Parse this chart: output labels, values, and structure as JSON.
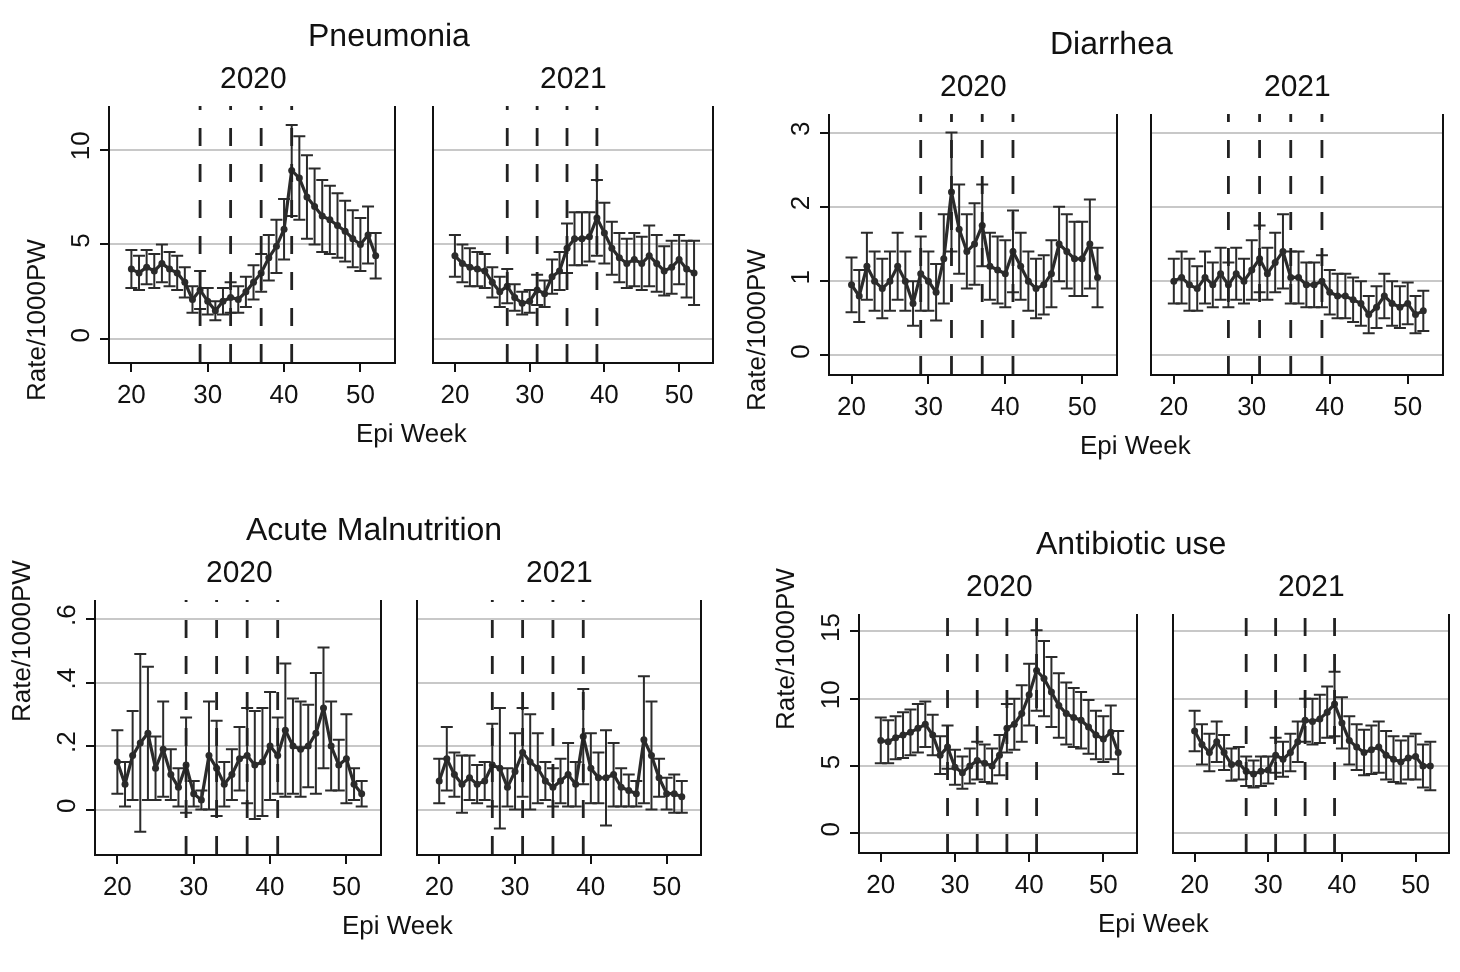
{
  "chart_data": [
    {
      "type": "line",
      "title": "Pneumonia",
      "subtitle": "2020",
      "xlabel": "Epi Week",
      "ylabel": "Rate/1000PW",
      "x": [
        20,
        21,
        22,
        23,
        24,
        25,
        26,
        27,
        28,
        29,
        30,
        31,
        32,
        33,
        34,
        35,
        36,
        37,
        38,
        39,
        40,
        41,
        42,
        43,
        44,
        45,
        46,
        47,
        48,
        49,
        50,
        51,
        52
      ],
      "xlim": [
        17.2,
        54.4
      ],
      "xticks": [
        20,
        30,
        40,
        50
      ],
      "ylim": [
        -1.2,
        12.3
      ],
      "yticks": [
        0,
        5,
        10
      ],
      "grid": "y",
      "marker": "circle",
      "line_style": "solid",
      "series": [
        {
          "color": "#2b2b2b",
          "values": [
            3.7,
            3.5,
            3.8,
            3.6,
            4.0,
            3.7,
            3.5,
            3.0,
            2.1,
            2.6,
            2.0,
            1.5,
            2.0,
            2.2,
            2.1,
            2.5,
            3.0,
            3.5,
            4.3,
            4.9,
            5.8,
            8.9,
            8.5,
            7.5,
            7.0,
            6.5,
            6.3,
            6.0,
            5.7,
            5.3,
            5.0,
            5.5,
            4.4
          ],
          "errors": [
            1.0,
            0.9,
            0.9,
            0.9,
            1.0,
            0.9,
            0.9,
            0.8,
            0.7,
            1.0,
            0.7,
            0.5,
            0.7,
            0.8,
            0.7,
            0.8,
            0.9,
            1.0,
            1.2,
            1.4,
            1.6,
            2.4,
            2.2,
            2.2,
            2.0,
            1.9,
            1.8,
            1.7,
            1.6,
            1.5,
            1.4,
            1.5,
            1.2
          ]
        }
      ],
      "ref_lines": [
        {
          "axis": "x",
          "value": 29,
          "color": "#222222",
          "line_style": "dashed"
        },
        {
          "axis": "x",
          "value": 33,
          "color": "#222222",
          "line_style": "dashed"
        },
        {
          "axis": "x",
          "value": 37,
          "color": "#222222",
          "line_style": "dashed"
        },
        {
          "axis": "x",
          "value": 41,
          "color": "#222222",
          "line_style": "dashed"
        }
      ]
    },
    {
      "type": "line",
      "subtitle": "2021",
      "x": [
        20,
        21,
        22,
        23,
        24,
        25,
        26,
        27,
        28,
        29,
        30,
        31,
        32,
        33,
        34,
        35,
        36,
        37,
        38,
        39,
        40,
        41,
        42,
        43,
        44,
        45,
        46,
        47,
        48,
        49,
        50,
        51,
        52
      ],
      "xlim": [
        17.2,
        54.4
      ],
      "xticks": [
        20,
        30,
        40,
        50
      ],
      "ylim": [
        -1.2,
        12.3
      ],
      "yticks": [
        0,
        5,
        10
      ],
      "grid": "y",
      "marker": "circle",
      "line_style": "solid",
      "tick_labels": "x",
      "series": [
        {
          "color": "#2b2b2b",
          "values": [
            4.4,
            4.0,
            3.8,
            3.7,
            3.6,
            3.0,
            2.5,
            2.8,
            2.2,
            1.9,
            2.0,
            2.6,
            2.4,
            3.3,
            3.6,
            4.8,
            5.3,
            5.3,
            5.4,
            6.4,
            5.6,
            4.8,
            4.3,
            4.0,
            4.2,
            4.0,
            4.4,
            4.0,
            3.6,
            3.8,
            4.2,
            3.7,
            3.5
          ],
          "errors": [
            1.1,
            1.0,
            1.0,
            0.9,
            0.9,
            0.8,
            0.8,
            0.9,
            0.7,
            0.6,
            0.6,
            0.8,
            0.7,
            0.9,
            1.0,
            1.3,
            1.4,
            1.4,
            1.3,
            2.0,
            1.6,
            1.4,
            1.3,
            1.3,
            1.4,
            1.4,
            1.6,
            1.5,
            1.3,
            1.4,
            1.3,
            1.5,
            1.7
          ]
        }
      ],
      "ref_lines": [
        {
          "axis": "x",
          "value": 27,
          "color": "#222222",
          "line_style": "dashed"
        },
        {
          "axis": "x",
          "value": 31,
          "color": "#222222",
          "line_style": "dashed"
        },
        {
          "axis": "x",
          "value": 35,
          "color": "#222222",
          "line_style": "dashed"
        },
        {
          "axis": "x",
          "value": 39,
          "color": "#222222",
          "line_style": "dashed"
        }
      ]
    },
    {
      "type": "line",
      "title": "Diarrhea",
      "subtitle": "2020",
      "xlabel": "Epi Week",
      "ylabel": "Rate/1000PW",
      "x": [
        20,
        21,
        22,
        23,
        24,
        25,
        26,
        27,
        28,
        29,
        30,
        31,
        32,
        33,
        34,
        35,
        36,
        37,
        38,
        39,
        40,
        41,
        42,
        43,
        44,
        45,
        46,
        47,
        48,
        49,
        50,
        51,
        52
      ],
      "xlim": [
        17.2,
        54.4
      ],
      "xticks": [
        20,
        30,
        40,
        50
      ],
      "ylim": [
        -0.25,
        3.25
      ],
      "yticks": [
        0,
        1,
        2,
        3
      ],
      "grid": "y",
      "marker": "circle",
      "line_style": "solid",
      "series": [
        {
          "color": "#2b2b2b",
          "values": [
            0.95,
            0.8,
            1.2,
            1.0,
            0.9,
            1.0,
            1.2,
            1.0,
            0.7,
            1.1,
            1.0,
            0.85,
            1.3,
            2.2,
            1.7,
            1.4,
            1.5,
            1.75,
            1.2,
            1.15,
            1.1,
            1.4,
            1.2,
            1.0,
            0.9,
            0.95,
            1.1,
            1.5,
            1.4,
            1.3,
            1.3,
            1.5,
            1.05
          ],
          "errors": [
            0.37,
            0.35,
            0.45,
            0.4,
            0.4,
            0.4,
            0.45,
            0.4,
            0.3,
            0.5,
            0.4,
            0.38,
            0.6,
            0.8,
            0.6,
            0.5,
            0.55,
            0.55,
            0.45,
            0.45,
            0.45,
            0.55,
            0.45,
            0.4,
            0.4,
            0.4,
            0.45,
            0.5,
            0.5,
            0.5,
            0.5,
            0.6,
            0.4
          ]
        }
      ],
      "ref_lines": [
        {
          "axis": "x",
          "value": 29,
          "color": "#222222",
          "line_style": "dashed"
        },
        {
          "axis": "x",
          "value": 33,
          "color": "#222222",
          "line_style": "dashed"
        },
        {
          "axis": "x",
          "value": 37,
          "color": "#222222",
          "line_style": "dashed"
        },
        {
          "axis": "x",
          "value": 41,
          "color": "#222222",
          "line_style": "dashed"
        }
      ]
    },
    {
      "type": "line",
      "subtitle": "2021",
      "x": [
        20,
        21,
        22,
        23,
        24,
        25,
        26,
        27,
        28,
        29,
        30,
        31,
        32,
        33,
        34,
        35,
        36,
        37,
        38,
        39,
        40,
        41,
        42,
        43,
        44,
        45,
        46,
        47,
        48,
        49,
        50,
        51,
        52
      ],
      "xlim": [
        17.2,
        54.4
      ],
      "xticks": [
        20,
        30,
        40,
        50
      ],
      "ylim": [
        -0.25,
        3.25
      ],
      "yticks": [
        0,
        1,
        2,
        3
      ],
      "grid": "y",
      "marker": "circle",
      "line_style": "solid",
      "tick_labels": "x",
      "series": [
        {
          "color": "#2b2b2b",
          "values": [
            1.0,
            1.05,
            0.95,
            0.9,
            1.05,
            0.95,
            1.1,
            0.95,
            1.1,
            1.0,
            1.15,
            1.3,
            1.1,
            1.25,
            1.4,
            1.05,
            1.05,
            0.95,
            0.95,
            1.0,
            0.85,
            0.8,
            0.8,
            0.75,
            0.7,
            0.55,
            0.65,
            0.8,
            0.7,
            0.65,
            0.7,
            0.55,
            0.6
          ],
          "errors": [
            0.3,
            0.35,
            0.35,
            0.3,
            0.35,
            0.3,
            0.35,
            0.3,
            0.35,
            0.3,
            0.4,
            0.45,
            0.35,
            0.4,
            0.5,
            0.35,
            0.35,
            0.3,
            0.3,
            0.35,
            0.3,
            0.3,
            0.3,
            0.3,
            0.3,
            0.25,
            0.28,
            0.3,
            0.3,
            0.28,
            0.28,
            0.25,
            0.27
          ]
        }
      ],
      "ref_lines": [
        {
          "axis": "x",
          "value": 27,
          "color": "#222222",
          "line_style": "dashed"
        },
        {
          "axis": "x",
          "value": 31,
          "color": "#222222",
          "line_style": "dashed"
        },
        {
          "axis": "x",
          "value": 35,
          "color": "#222222",
          "line_style": "dashed"
        },
        {
          "axis": "x",
          "value": 39,
          "color": "#222222",
          "line_style": "dashed"
        }
      ]
    },
    {
      "type": "line",
      "title": "Acute Malnutrition",
      "subtitle": "2020",
      "xlabel": "Epi Week",
      "ylabel": "Rate/1000PW",
      "x": [
        20,
        21,
        22,
        23,
        24,
        25,
        26,
        27,
        28,
        29,
        30,
        31,
        32,
        33,
        34,
        35,
        36,
        37,
        38,
        39,
        40,
        41,
        42,
        43,
        44,
        45,
        46,
        47,
        48,
        49,
        50,
        51,
        52
      ],
      "xlim": [
        17.2,
        54.4
      ],
      "xticks": [
        20,
        30,
        40,
        50
      ],
      "ylim": [
        -0.14,
        0.66
      ],
      "yticks": [
        0,
        {
          "value": 0.2,
          "label": ".2"
        },
        {
          "value": 0.4,
          "label": ".4"
        },
        {
          "value": 0.6,
          "label": ".6"
        }
      ],
      "grid": "y",
      "marker": "circle",
      "line_style": "solid",
      "series": [
        {
          "color": "#2b2b2b",
          "values": [
            0.15,
            0.08,
            0.17,
            0.21,
            0.24,
            0.13,
            0.19,
            0.11,
            0.07,
            0.14,
            0.05,
            0.03,
            0.17,
            0.13,
            0.08,
            0.11,
            0.16,
            0.17,
            0.14,
            0.15,
            0.2,
            0.17,
            0.25,
            0.2,
            0.19,
            0.2,
            0.24,
            0.32,
            0.2,
            0.14,
            0.16,
            0.08,
            0.05
          ],
          "errors": [
            0.1,
            0.07,
            0.14,
            0.28,
            0.21,
            0.1,
            0.15,
            0.08,
            0.06,
            0.15,
            0.04,
            0.03,
            0.17,
            0.15,
            0.07,
            0.08,
            0.1,
            0.15,
            0.17,
            0.17,
            0.17,
            0.12,
            0.21,
            0.15,
            0.15,
            0.13,
            0.19,
            0.19,
            0.14,
            0.08,
            0.14,
            0.05,
            0.04
          ]
        }
      ],
      "ref_lines": [
        {
          "axis": "x",
          "value": 29,
          "color": "#222222",
          "line_style": "dashed"
        },
        {
          "axis": "x",
          "value": 33,
          "color": "#222222",
          "line_style": "dashed"
        },
        {
          "axis": "x",
          "value": 37,
          "color": "#222222",
          "line_style": "dashed"
        },
        {
          "axis": "x",
          "value": 41,
          "color": "#222222",
          "line_style": "dashed"
        }
      ]
    },
    {
      "type": "line",
      "subtitle": "2021",
      "x": [
        20,
        21,
        22,
        23,
        24,
        25,
        26,
        27,
        28,
        29,
        30,
        31,
        32,
        33,
        34,
        35,
        36,
        37,
        38,
        39,
        40,
        41,
        42,
        43,
        44,
        45,
        46,
        47,
        48,
        49,
        50,
        51,
        52
      ],
      "xlim": [
        17.2,
        54.4
      ],
      "xticks": [
        20,
        30,
        40,
        50
      ],
      "ylim": [
        -0.14,
        0.66
      ],
      "yticks": [
        {
          "value": 0,
          "label": null
        },
        {
          "value": 0.2,
          "label": null
        },
        {
          "value": 0.4,
          "label": null
        },
        {
          "value": 0.6,
          "label": null
        }
      ],
      "grid": "y",
      "marker": "circle",
      "line_style": "solid",
      "tick_labels": "x",
      "series": [
        {
          "color": "#2b2b2b",
          "values": [
            0.09,
            0.16,
            0.11,
            0.08,
            0.1,
            0.08,
            0.09,
            0.14,
            0.13,
            0.07,
            0.12,
            0.18,
            0.15,
            0.13,
            0.09,
            0.07,
            0.09,
            0.11,
            0.08,
            0.23,
            0.13,
            0.1,
            0.1,
            0.11,
            0.07,
            0.06,
            0.05,
            0.22,
            0.17,
            0.1,
            0.05,
            0.05,
            0.04
          ],
          "errors": [
            0.07,
            0.1,
            0.07,
            0.09,
            0.07,
            0.06,
            0.06,
            0.13,
            0.19,
            0.06,
            0.12,
            0.14,
            0.15,
            0.11,
            0.06,
            0.06,
            0.07,
            0.1,
            0.07,
            0.15,
            0.11,
            0.08,
            0.15,
            0.1,
            0.06,
            0.05,
            0.04,
            0.2,
            0.17,
            0.06,
            0.05,
            0.06,
            0.05
          ]
        }
      ],
      "ref_lines": [
        {
          "axis": "x",
          "value": 27,
          "color": "#222222",
          "line_style": "dashed"
        },
        {
          "axis": "x",
          "value": 31,
          "color": "#222222",
          "line_style": "dashed"
        },
        {
          "axis": "x",
          "value": 35,
          "color": "#222222",
          "line_style": "dashed"
        },
        {
          "axis": "x",
          "value": 39,
          "color": "#222222",
          "line_style": "dashed"
        }
      ]
    },
    {
      "type": "line",
      "title": "Antibiotic use",
      "subtitle": "2020",
      "xlabel": "Epi Week",
      "ylabel": "Rate/1000PW",
      "x": [
        20,
        21,
        22,
        23,
        24,
        25,
        26,
        27,
        28,
        29,
        30,
        31,
        32,
        33,
        34,
        35,
        36,
        37,
        38,
        39,
        40,
        41,
        42,
        43,
        44,
        45,
        46,
        47,
        48,
        49,
        50,
        51,
        52
      ],
      "xlim": [
        17.2,
        54.4
      ],
      "xticks": [
        20,
        30,
        40,
        50
      ],
      "ylim": [
        -1.4,
        16.3
      ],
      "yticks": [
        0,
        5,
        10,
        15
      ],
      "grid": "y",
      "marker": "circle",
      "line_style": "solid",
      "series": [
        {
          "color": "#2b2b2b",
          "values": [
            6.9,
            6.8,
            7.1,
            7.3,
            7.5,
            7.8,
            8.1,
            7.3,
            5.8,
            6.4,
            4.9,
            4.5,
            5.0,
            5.4,
            5.2,
            5.0,
            5.8,
            7.8,
            8.1,
            8.9,
            10.3,
            12.1,
            11.5,
            10.5,
            9.5,
            8.9,
            8.6,
            8.4,
            7.9,
            7.3,
            7.0,
            7.5,
            6.0
          ],
          "errors": [
            1.7,
            1.6,
            1.6,
            1.7,
            1.7,
            1.8,
            1.7,
            1.5,
            1.4,
            1.6,
            1.3,
            1.2,
            1.3,
            1.4,
            1.4,
            1.3,
            1.5,
            1.8,
            1.9,
            2.1,
            2.3,
            3.0,
            2.8,
            2.6,
            2.4,
            2.3,
            2.2,
            2.1,
            2.0,
            1.8,
            1.7,
            2.0,
            1.6
          ]
        }
      ],
      "ref_lines": [
        {
          "axis": "x",
          "value": 29,
          "color": "#222222",
          "line_style": "dashed"
        },
        {
          "axis": "x",
          "value": 33,
          "color": "#222222",
          "line_style": "dashed"
        },
        {
          "axis": "x",
          "value": 37,
          "color": "#222222",
          "line_style": "dashed"
        },
        {
          "axis": "x",
          "value": 41,
          "color": "#222222",
          "line_style": "dashed"
        }
      ]
    },
    {
      "type": "line",
      "subtitle": "2021",
      "x": [
        20,
        21,
        22,
        23,
        24,
        25,
        26,
        27,
        28,
        29,
        30,
        31,
        32,
        33,
        34,
        35,
        36,
        37,
        38,
        39,
        40,
        41,
        42,
        43,
        44,
        45,
        46,
        47,
        48,
        49,
        50,
        51,
        52
      ],
      "xlim": [
        17.2,
        54.4
      ],
      "xticks": [
        20,
        30,
        40,
        50
      ],
      "ylim": [
        -1.4,
        16.3
      ],
      "yticks": [
        0,
        5,
        10,
        15
      ],
      "grid": "y",
      "marker": "circle",
      "line_style": "solid",
      "tick_labels": "x",
      "series": [
        {
          "color": "#2b2b2b",
          "values": [
            7.6,
            6.6,
            6.0,
            6.8,
            6.0,
            5.1,
            5.2,
            4.6,
            4.4,
            4.6,
            4.7,
            5.8,
            5.5,
            6.0,
            6.8,
            8.4,
            8.3,
            8.5,
            9.0,
            9.6,
            8.2,
            6.9,
            6.4,
            6.0,
            6.2,
            6.4,
            5.8,
            5.5,
            5.3,
            5.6,
            5.7,
            5.0,
            5.0
          ],
          "errors": [
            1.5,
            1.5,
            1.4,
            1.5,
            1.3,
            1.2,
            1.2,
            1.1,
            1.0,
            1.1,
            1.0,
            1.3,
            1.3,
            1.4,
            1.5,
            1.6,
            1.7,
            1.8,
            1.9,
            2.4,
            1.9,
            1.8,
            1.7,
            1.7,
            1.8,
            1.9,
            1.8,
            1.7,
            1.6,
            1.6,
            1.7,
            1.6,
            1.8
          ]
        }
      ],
      "ref_lines": [
        {
          "axis": "x",
          "value": 27,
          "color": "#222222",
          "line_style": "dashed"
        },
        {
          "axis": "x",
          "value": 31,
          "color": "#222222",
          "line_style": "dashed"
        },
        {
          "axis": "x",
          "value": 35,
          "color": "#222222",
          "line_style": "dashed"
        },
        {
          "axis": "x",
          "value": 39,
          "color": "#222222",
          "line_style": "dashed"
        }
      ]
    }
  ]
}
